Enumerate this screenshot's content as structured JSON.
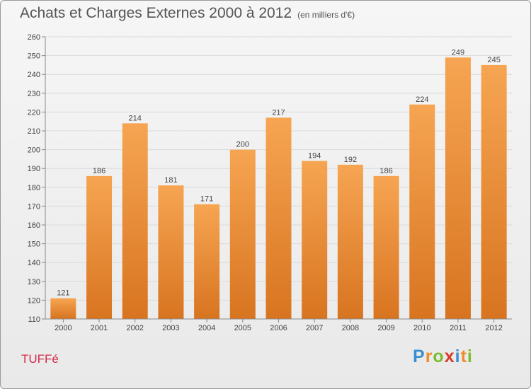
{
  "title": "Achats et Charges Externes 2000 à 2012",
  "subtitle": "(en milliers d'€)",
  "commune": "TUFFé",
  "logo": {
    "letters": [
      "P",
      "r",
      "o",
      "x",
      "i",
      "t",
      "i"
    ],
    "colors": [
      "#3a8fd0",
      "#f08c2c",
      "#7dbb2f",
      "#d93a2b",
      "#3a8fd0",
      "#f08c2c",
      "#7dbb2f"
    ]
  },
  "chart_data": {
    "type": "bar",
    "categories": [
      "2000",
      "2001",
      "2002",
      "2003",
      "2004",
      "2005",
      "2006",
      "2007",
      "2008",
      "2009",
      "2010",
      "2011",
      "2012"
    ],
    "values": [
      121,
      186,
      214,
      181,
      171,
      200,
      217,
      194,
      192,
      186,
      224,
      249,
      245
    ],
    "data_labels": [
      "121",
      "186",
      "214",
      "181",
      "171",
      "200",
      "217",
      "194",
      "192",
      "186",
      "224",
      "249",
      "245"
    ],
    "ylim": [
      110,
      260
    ],
    "yticks": [
      110,
      120,
      130,
      140,
      150,
      160,
      170,
      180,
      190,
      200,
      210,
      220,
      230,
      240,
      250,
      260
    ],
    "grid": true,
    "bar_color_top": "#f6a552",
    "bar_color_bottom": "#d87420",
    "title": "Achats et Charges Externes 2000 à 2012",
    "xlabel": "",
    "ylabel": ""
  }
}
